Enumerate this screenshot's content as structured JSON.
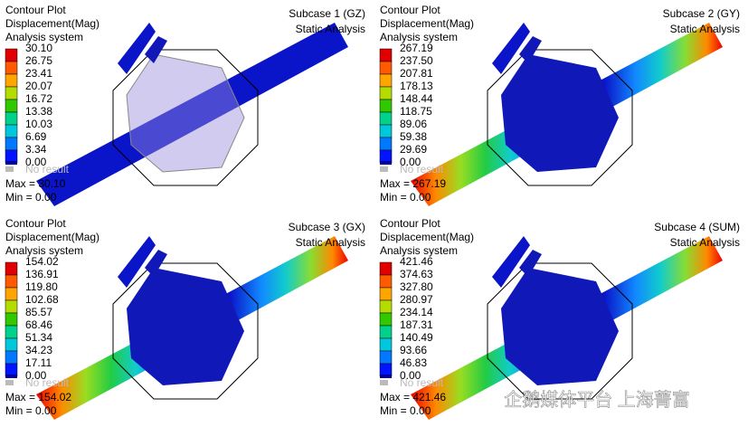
{
  "panels": [
    {
      "header": [
        "Contour Plot",
        "Displacement(Mag)",
        "Analysis system"
      ],
      "subcase": "Subcase 1 (GZ)",
      "analysis": "Static Analysis",
      "legend": [
        "30.10",
        "26.75",
        "23.41",
        "20.07",
        "16.72",
        "13.38",
        "10.03",
        "6.69",
        "3.34",
        "0.00"
      ],
      "no_result": "No result",
      "max": "Max = 30.10",
      "min": "Min = 0.00"
    },
    {
      "header": [
        "Contour Plot",
        "Displacement(Mag)",
        "Analysis system"
      ],
      "subcase": "Subcase 2 (GY)",
      "analysis": "Static Analysis",
      "legend": [
        "267.19",
        "237.50",
        "207.81",
        "178.13",
        "148.44",
        "118.75",
        "89.06",
        "59.38",
        "29.69",
        "0.00"
      ],
      "no_result": "No result",
      "max": "Max = 267.19",
      "min": "Min = 0.00"
    },
    {
      "header": [
        "Contour Plot",
        "Displacement(Mag)",
        "Analysis system"
      ],
      "subcase": "Subcase 3 (GX)",
      "analysis": "Static Analysis",
      "legend": [
        "154.02",
        "136.91",
        "119.80",
        "102.68",
        "85.57",
        "68.46",
        "51.34",
        "34.23",
        "17.11",
        "0.00"
      ],
      "no_result": "No result",
      "max": "Max = 154.02",
      "min": "Min = 0.00"
    },
    {
      "header": [
        "Contour Plot",
        "Displacement(Mag)",
        "Analysis system"
      ],
      "subcase": "Subcase 4 (SUM)",
      "analysis": "Static Analysis",
      "legend": [
        "421.46",
        "374.63",
        "327.80",
        "280.97",
        "234.14",
        "187.31",
        "140.49",
        "93.66",
        "46.83",
        "0.00"
      ],
      "no_result": "No result",
      "max": "Max = 421.46",
      "min": "Min = 0.00"
    }
  ],
  "watermark": "企鹅媒体平台 上海菁富"
}
